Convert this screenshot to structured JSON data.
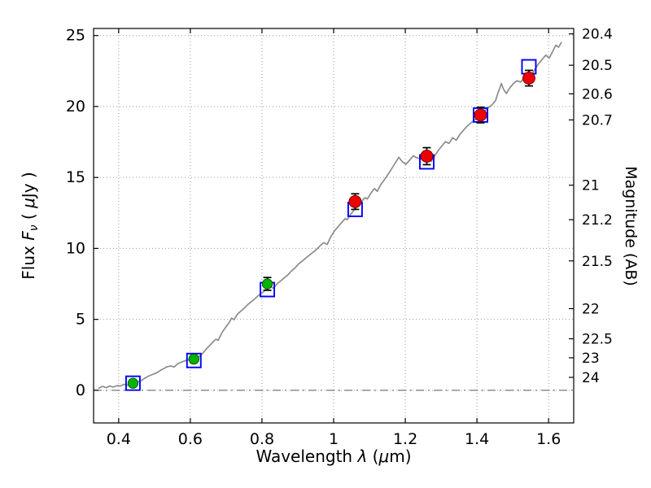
{
  "figure": {
    "background": "#ffffff",
    "frame_color": "#000000",
    "grid_color": "#9a9a9a",
    "zero_line_color": "#777777"
  },
  "chart_data": {
    "type": "line+scatter",
    "title": "",
    "xlabel": {
      "word": "Wavelength",
      "symbol": "λ",
      "unit_open": "(",
      "unit_mu": "μ",
      "unit_close": "m)"
    },
    "ylabel_left": {
      "word": "Flux",
      "symbol": "F",
      "subscript": "ν",
      "unit_open": "( ",
      "unit_mu": "μ",
      "unit_close": "Jy )"
    },
    "ylabel_right": "Magnitude (AB)",
    "xlim": [
      0.33,
      1.67
    ],
    "ylim_flux": [
      -2.3,
      25.5
    ],
    "grid": true,
    "legend": "none",
    "ab_zeropoint": 23.9,
    "x_ticks": [
      {
        "v": 0.4,
        "label": "0.4"
      },
      {
        "v": 0.6,
        "label": "0.6"
      },
      {
        "v": 0.8,
        "label": "0.8"
      },
      {
        "v": 1.0,
        "label": "1"
      },
      {
        "v": 1.2,
        "label": "1.2"
      },
      {
        "v": 1.4,
        "label": "1.4"
      },
      {
        "v": 1.6,
        "label": "1.6"
      }
    ],
    "y_ticks_left": [
      {
        "v": 0,
        "label": "0"
      },
      {
        "v": 5,
        "label": "5"
      },
      {
        "v": 10,
        "label": "10"
      },
      {
        "v": 15,
        "label": "15"
      },
      {
        "v": 20,
        "label": "20"
      },
      {
        "v": 25,
        "label": "25"
      }
    ],
    "y_ticks_right": [
      {
        "mag": 20.4,
        "label": "20.4"
      },
      {
        "mag": 20.5,
        "label": "20.5"
      },
      {
        "mag": 20.6,
        "label": "20.6"
      },
      {
        "mag": 20.7,
        "label": "20.7"
      },
      {
        "mag": 21.0,
        "label": "21"
      },
      {
        "mag": 21.2,
        "label": "21.2"
      },
      {
        "mag": 21.5,
        "label": "21.5"
      },
      {
        "mag": 22.0,
        "label": "22"
      },
      {
        "mag": 22.5,
        "label": "22.5"
      },
      {
        "mag": 23.0,
        "label": "23"
      },
      {
        "mag": 24.0,
        "label": "24"
      }
    ],
    "zero_line": {
      "y": 0,
      "style": "dash-dot"
    },
    "spectrum": {
      "name": "model-spectrum",
      "color": "#8c8c8c",
      "points": [
        [
          0.345,
          0.15
        ],
        [
          0.355,
          0.28
        ],
        [
          0.365,
          0.18
        ],
        [
          0.375,
          0.3
        ],
        [
          0.385,
          0.22
        ],
        [
          0.395,
          0.33
        ],
        [
          0.405,
          0.3
        ],
        [
          0.415,
          0.42
        ],
        [
          0.425,
          0.35
        ],
        [
          0.435,
          0.48
        ],
        [
          0.445,
          0.52
        ],
        [
          0.455,
          0.6
        ],
        [
          0.465,
          0.72
        ],
        [
          0.475,
          0.88
        ],
        [
          0.485,
          1.02
        ],
        [
          0.495,
          1.12
        ],
        [
          0.505,
          1.22
        ],
        [
          0.515,
          1.38
        ],
        [
          0.525,
          1.52
        ],
        [
          0.535,
          1.66
        ],
        [
          0.545,
          1.72
        ],
        [
          0.555,
          1.64
        ],
        [
          0.565,
          1.88
        ],
        [
          0.575,
          1.98
        ],
        [
          0.585,
          2.08
        ],
        [
          0.595,
          2.16
        ],
        [
          0.605,
          2.12
        ],
        [
          0.615,
          2.24
        ],
        [
          0.625,
          2.38
        ],
        [
          0.635,
          2.62
        ],
        [
          0.645,
          2.92
        ],
        [
          0.655,
          3.18
        ],
        [
          0.665,
          3.46
        ],
        [
          0.672,
          3.6
        ],
        [
          0.678,
          3.52
        ],
        [
          0.688,
          4.05
        ],
        [
          0.698,
          4.42
        ],
        [
          0.708,
          4.75
        ],
        [
          0.715,
          5.08
        ],
        [
          0.722,
          4.98
        ],
        [
          0.732,
          5.38
        ],
        [
          0.742,
          5.6
        ],
        [
          0.752,
          5.82
        ],
        [
          0.762,
          6.08
        ],
        [
          0.772,
          6.28
        ],
        [
          0.782,
          6.5
        ],
        [
          0.792,
          6.72
        ],
        [
          0.802,
          6.9
        ],
        [
          0.812,
          7.12
        ],
        [
          0.822,
          7.36
        ],
        [
          0.832,
          7.18
        ],
        [
          0.842,
          7.5
        ],
        [
          0.852,
          7.7
        ],
        [
          0.862,
          7.92
        ],
        [
          0.872,
          8.12
        ],
        [
          0.882,
          8.4
        ],
        [
          0.892,
          8.62
        ],
        [
          0.902,
          8.9
        ],
        [
          0.912,
          9.1
        ],
        [
          0.922,
          9.32
        ],
        [
          0.932,
          9.52
        ],
        [
          0.942,
          9.72
        ],
        [
          0.952,
          9.92
        ],
        [
          0.962,
          10.18
        ],
        [
          0.972,
          10.4
        ],
        [
          0.982,
          10.28
        ],
        [
          0.992,
          10.82
        ],
        [
          1.002,
          11.22
        ],
        [
          1.012,
          11.52
        ],
        [
          1.022,
          11.82
        ],
        [
          1.032,
          12.1
        ],
        [
          1.038,
          12.02
        ],
        [
          1.048,
          12.42
        ],
        [
          1.058,
          12.72
        ],
        [
          1.068,
          13.02
        ],
        [
          1.078,
          13.32
        ],
        [
          1.088,
          13.58
        ],
        [
          1.094,
          13.48
        ],
        [
          1.104,
          13.9
        ],
        [
          1.114,
          14.22
        ],
        [
          1.122,
          14.02
        ],
        [
          1.132,
          14.52
        ],
        [
          1.142,
          14.85
        ],
        [
          1.152,
          15.22
        ],
        [
          1.162,
          15.62
        ],
        [
          1.172,
          16.02
        ],
        [
          1.182,
          16.42
        ],
        [
          1.192,
          16.1
        ],
        [
          1.202,
          15.92
        ],
        [
          1.212,
          16.22
        ],
        [
          1.222,
          16.52
        ],
        [
          1.232,
          16.4
        ],
        [
          1.242,
          16.3
        ],
        [
          1.252,
          16.22
        ],
        [
          1.262,
          16.32
        ],
        [
          1.272,
          16.12
        ],
        [
          1.282,
          16.52
        ],
        [
          1.292,
          16.9
        ],
        [
          1.302,
          17.22
        ],
        [
          1.312,
          17.52
        ],
        [
          1.322,
          17.4
        ],
        [
          1.332,
          17.8
        ],
        [
          1.342,
          17.62
        ],
        [
          1.352,
          18.02
        ],
        [
          1.362,
          18.32
        ],
        [
          1.372,
          18.6
        ],
        [
          1.382,
          18.82
        ],
        [
          1.392,
          19.02
        ],
        [
          1.402,
          19.22
        ],
        [
          1.412,
          19.5
        ],
        [
          1.422,
          19.72
        ],
        [
          1.432,
          19.92
        ],
        [
          1.442,
          20.12
        ],
        [
          1.452,
          20.42
        ],
        [
          1.458,
          20.92
        ],
        [
          1.464,
          21.32
        ],
        [
          1.468,
          21.62
        ],
        [
          1.474,
          21.22
        ],
        [
          1.482,
          20.92
        ],
        [
          1.492,
          21.32
        ],
        [
          1.502,
          21.62
        ],
        [
          1.512,
          21.82
        ],
        [
          1.522,
          21.72
        ],
        [
          1.532,
          22.02
        ],
        [
          1.542,
          21.82
        ],
        [
          1.552,
          22.22
        ],
        [
          1.562,
          22.62
        ],
        [
          1.572,
          23.02
        ],
        [
          1.582,
          23.32
        ],
        [
          1.592,
          23.62
        ],
        [
          1.602,
          23.42
        ],
        [
          1.612,
          23.92
        ],
        [
          1.62,
          24.32
        ],
        [
          1.628,
          24.18
        ],
        [
          1.635,
          24.5
        ]
      ]
    },
    "model_photometry": {
      "name": "model-photometry-squares",
      "marker": "open-square",
      "color": "#0000ff",
      "points": [
        [
          0.44,
          0.5
        ],
        [
          0.61,
          2.1
        ],
        [
          0.815,
          7.1
        ],
        [
          1.06,
          12.75
        ],
        [
          1.26,
          16.1
        ],
        [
          1.41,
          19.4
        ],
        [
          1.545,
          22.8
        ]
      ]
    },
    "observed_photometry": [
      {
        "name": "observed-optical",
        "marker": "filled-circle",
        "color": "#00b300",
        "edge_color": "#004d00",
        "points": [
          {
            "x": 0.44,
            "y": 0.5,
            "err": 0.18
          },
          {
            "x": 0.61,
            "y": 2.2,
            "err": 0.22
          },
          {
            "x": 0.815,
            "y": 7.5,
            "err": 0.45
          }
        ]
      },
      {
        "name": "observed-infrared",
        "marker": "filled-circle",
        "color": "#ee0000",
        "edge_color": "#660000",
        "points": [
          {
            "x": 1.06,
            "y": 13.3,
            "err": 0.55
          },
          {
            "x": 1.26,
            "y": 16.5,
            "err": 0.6
          },
          {
            "x": 1.41,
            "y": 19.4,
            "err": 0.55
          },
          {
            "x": 1.545,
            "y": 22.0,
            "err": 0.55
          }
        ]
      }
    ]
  }
}
